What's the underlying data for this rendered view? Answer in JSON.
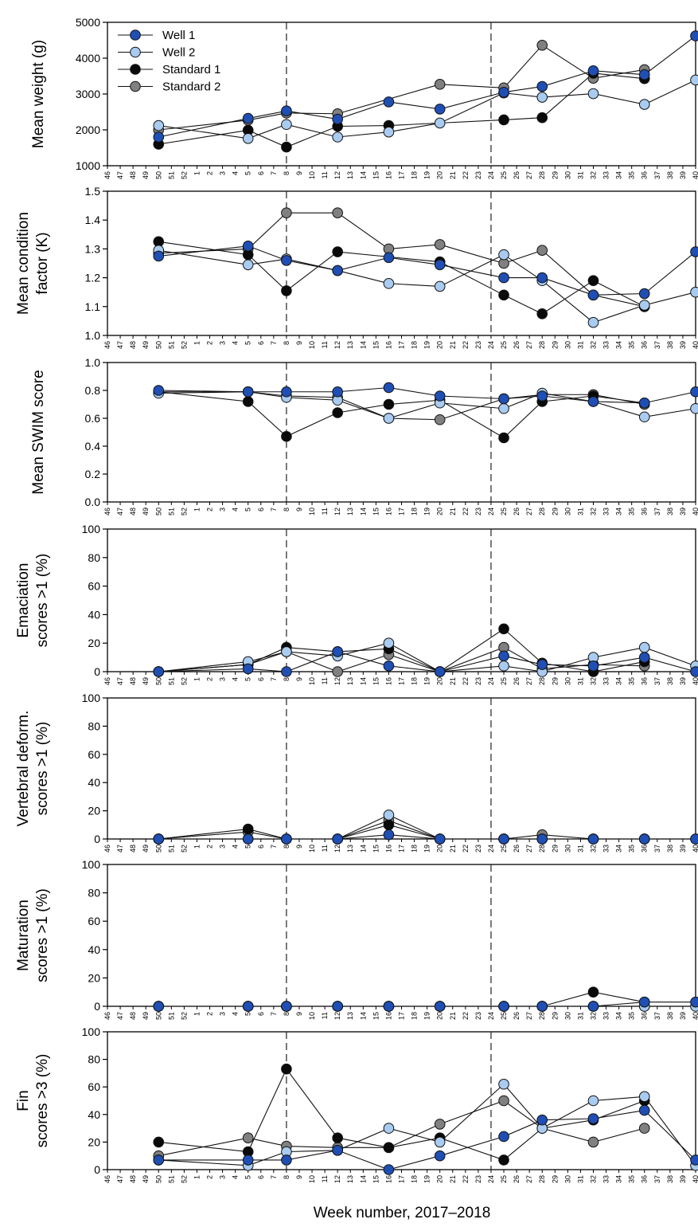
{
  "figure": {
    "xlabel": "Week number, 2017–2018",
    "x_tick_labels": [
      "46",
      "47",
      "48",
      "49",
      "50",
      "51",
      "52",
      "1",
      "2",
      "3",
      "4",
      "5",
      "6",
      "7",
      "8",
      "9",
      "10",
      "11",
      "12",
      "13",
      "14",
      "15",
      "16",
      "17",
      "18",
      "19",
      "20",
      "21",
      "22",
      "23",
      "24",
      "25",
      "26",
      "27",
      "28",
      "29",
      "30",
      "31",
      "32",
      "33",
      "34",
      "35",
      "36",
      "37",
      "38",
      "39",
      "40"
    ],
    "vlines_at_tick": [
      "8",
      "24"
    ]
  },
  "legend": {
    "placement": "top-left of first panel",
    "items": [
      {
        "label": "Well 1",
        "color": "#1f4fb4"
      },
      {
        "label": "Well 2",
        "color": "#a9cbf0"
      },
      {
        "label": "Standard 1",
        "color": "#0a0a0a"
      },
      {
        "label": "Standard 2",
        "color": "#808080"
      }
    ]
  },
  "chart_data": [
    {
      "type": "line",
      "ylabel": [
        "Mean weight (g)"
      ],
      "ylim": [
        1000,
        5000
      ],
      "yticks": [
        "1000",
        "2000",
        "3000",
        "4000",
        "5000"
      ],
      "x": [
        "50",
        "5",
        "8",
        "12",
        "16",
        "20",
        "25",
        "28",
        "32",
        "36",
        "40"
      ],
      "series": [
        {
          "name": "Well 1",
          "values": [
            1800,
            2320,
            2530,
            2300,
            2780,
            2580,
            3050,
            3210,
            3650,
            3540,
            4620
          ]
        },
        {
          "name": "Well 2",
          "values": [
            2120,
            1760,
            2150,
            1800,
            1940,
            2190,
            3030,
            2910,
            3010,
            2710,
            3390
          ]
        },
        {
          "name": "Standard 1",
          "values": [
            1600,
            1990,
            1520,
            2100,
            2120,
            null,
            2280,
            2340,
            3580,
            3430,
            null
          ]
        },
        {
          "name": "Standard 2",
          "values": [
            2000,
            2270,
            2470,
            2450,
            null,
            3270,
            3170,
            4360,
            3440,
            3680,
            null
          ]
        }
      ]
    },
    {
      "type": "line",
      "ylabel": [
        "Mean condition",
        "factor (K)"
      ],
      "ylim": [
        1.0,
        1.5
      ],
      "yticks": [
        "1.0",
        "1.1",
        "1.2",
        "1.3",
        "1.4",
        "1.5"
      ],
      "x": [
        "50",
        "5",
        "8",
        "12",
        "16",
        "20",
        "25",
        "28",
        "32",
        "36",
        "40"
      ],
      "series": [
        {
          "name": "Well 1",
          "values": [
            1.275,
            1.31,
            1.26,
            1.225,
            1.27,
            1.245,
            1.2,
            1.2,
            1.14,
            1.145,
            1.29
          ]
        },
        {
          "name": "Well 2",
          "values": [
            1.295,
            1.245,
            1.265,
            1.225,
            1.18,
            1.17,
            1.28,
            1.19,
            1.045,
            1.105,
            1.15
          ]
        },
        {
          "name": "Standard 1",
          "values": [
            1.325,
            1.28,
            1.155,
            1.29,
            null,
            1.255,
            1.14,
            1.075,
            1.19,
            1.1,
            null
          ]
        },
        {
          "name": "Standard 2",
          "values": [
            1.285,
            1.3,
            1.425,
            1.425,
            1.3,
            1.315,
            1.25,
            1.295,
            1.14,
            1.1,
            null
          ]
        }
      ]
    },
    {
      "type": "line",
      "ylabel": [
        "Mean SWIM score"
      ],
      "ylim": [
        0.0,
        1.0
      ],
      "yticks": [
        "0.0",
        "0.2",
        "0.4",
        "0.6",
        "0.8",
        "1.0"
      ],
      "x": [
        "50",
        "5",
        "8",
        "12",
        "16",
        "20",
        "25",
        "28",
        "32",
        "36",
        "40"
      ],
      "series": [
        {
          "name": "Well 1",
          "values": [
            0.8,
            0.79,
            0.79,
            0.79,
            0.82,
            0.76,
            0.74,
            0.76,
            0.72,
            0.71,
            0.79
          ]
        },
        {
          "name": "Well 2",
          "values": [
            0.78,
            0.79,
            0.75,
            0.73,
            0.6,
            0.71,
            0.67,
            0.78,
            0.72,
            0.61,
            0.67
          ]
        },
        {
          "name": "Standard 1",
          "values": [
            0.79,
            0.72,
            0.47,
            0.64,
            0.7,
            0.73,
            0.46,
            0.72,
            0.76,
            0.71,
            null
          ]
        },
        {
          "name": "Standard 2",
          "values": [
            0.79,
            0.79,
            0.76,
            0.75,
            0.6,
            0.59,
            0.74,
            0.77,
            0.77,
            0.7,
            null
          ]
        }
      ]
    },
    {
      "type": "line",
      "ylabel": [
        "Emaciation",
        "scores >1 (%)"
      ],
      "ylim": [
        0,
        100
      ],
      "yticks": [
        "0",
        "20",
        "40",
        "60",
        "80",
        "100"
      ],
      "x": [
        "50",
        "5",
        "8",
        "12",
        "16",
        "20",
        "25",
        "28",
        "32",
        "36",
        "40"
      ],
      "series": [
        {
          "name": "Well 1",
          "values": [
            0,
            2,
            0,
            14,
            4,
            0,
            11,
            5,
            4,
            10,
            0
          ]
        },
        {
          "name": "Well 2",
          "values": [
            0,
            7,
            14,
            11,
            20,
            0,
            4,
            0,
            10,
            17,
            4
          ]
        },
        {
          "name": "Standard 1",
          "values": [
            0,
            5,
            17,
            14,
            16,
            0,
            30,
            6,
            0,
            7,
            null
          ]
        },
        {
          "name": "Standard 2",
          "values": [
            0,
            5,
            14,
            0,
            12,
            0,
            17,
            2,
            5,
            4,
            null
          ]
        }
      ]
    },
    {
      "type": "line",
      "ylabel": [
        "Vertebral deform.",
        "scores >1 (%)"
      ],
      "ylim": [
        0,
        100
      ],
      "yticks": [
        "0",
        "20",
        "40",
        "60",
        "80",
        "100"
      ],
      "x": [
        "50",
        "5",
        "8",
        "12",
        "16",
        "20",
        "25",
        "28",
        "32",
        "36",
        "40"
      ],
      "series": [
        {
          "name": "Well 1",
          "values": [
            0,
            0,
            0,
            0,
            3,
            0,
            0,
            0,
            0,
            0,
            0
          ]
        },
        {
          "name": "Well 2",
          "values": [
            0,
            0,
            0,
            0,
            17,
            0,
            0,
            0,
            0,
            0,
            0
          ]
        },
        {
          "name": "Standard 1",
          "values": [
            0,
            7,
            0,
            0,
            10,
            0,
            0,
            0,
            0,
            0,
            null
          ]
        },
        {
          "name": "Standard 2",
          "values": [
            0,
            5,
            0,
            0,
            13,
            0,
            0,
            3,
            0,
            0,
            null
          ]
        }
      ]
    },
    {
      "type": "line",
      "ylabel": [
        "Maturation",
        "scores >1 (%)"
      ],
      "ylim": [
        0,
        100
      ],
      "yticks": [
        "0",
        "20",
        "40",
        "60",
        "80",
        "100"
      ],
      "x": [
        "50",
        "5",
        "8",
        "12",
        "16",
        "20",
        "25",
        "28",
        "32",
        "36",
        "40"
      ],
      "series": [
        {
          "name": "Well 1",
          "values": [
            0,
            0,
            0,
            0,
            0,
            0,
            0,
            0,
            0,
            3,
            3
          ]
        },
        {
          "name": "Well 2",
          "values": [
            0,
            0,
            0,
            0,
            0,
            0,
            0,
            0,
            0,
            0,
            0
          ]
        },
        {
          "name": "Standard 1",
          "values": [
            0,
            0,
            0,
            0,
            0,
            0,
            0,
            0,
            10,
            3,
            null
          ]
        },
        {
          "name": "Standard 2",
          "values": [
            0,
            0,
            0,
            0,
            0,
            0,
            0,
            0,
            0,
            0,
            null
          ]
        }
      ]
    },
    {
      "type": "line",
      "ylabel": [
        "Fin",
        "scores >3 (%)"
      ],
      "ylim": [
        0,
        100
      ],
      "yticks": [
        "0",
        "20",
        "40",
        "60",
        "80",
        "100"
      ],
      "x": [
        "50",
        "5",
        "8",
        "12",
        "16",
        "20",
        "25",
        "28",
        "32",
        "36",
        "40"
      ],
      "series": [
        {
          "name": "Well 1",
          "values": [
            7,
            7,
            7,
            14,
            0,
            10,
            24,
            36,
            37,
            43,
            7
          ]
        },
        {
          "name": "Well 2",
          "values": [
            7,
            3,
            13,
            14,
            30,
            20,
            62,
            30,
            50,
            53,
            3
          ]
        },
        {
          "name": "Standard 1",
          "values": [
            20,
            13,
            73,
            23,
            16,
            23,
            7,
            30,
            36,
            50,
            null
          ]
        },
        {
          "name": "Standard 2",
          "values": [
            10,
            23,
            17,
            16,
            16,
            33,
            50,
            30,
            20,
            30,
            null
          ]
        }
      ]
    }
  ]
}
